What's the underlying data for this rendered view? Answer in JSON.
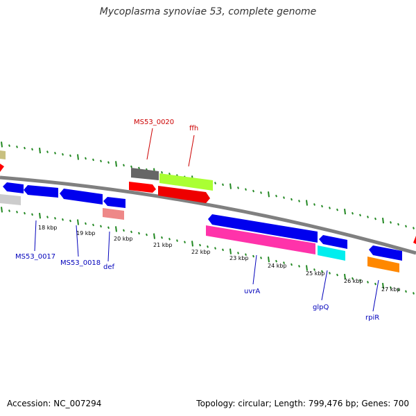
{
  "title": "Mycoplasma synoviae 53, complete genome",
  "footer": {
    "accession": "Accession: NC_007294",
    "summary": "Topology: circular; Length: 799,476 bp; Genes: 700"
  },
  "colors": {
    "backbone": "#888888",
    "tick": "#228822",
    "upper_label": "#cc0000",
    "lower_label": "#0000bb"
  },
  "kbp_labels": [
    "18 kbp",
    "19 kbp",
    "20 kbp",
    "21 kbp",
    "22 kbp",
    "23 kbp",
    "24 kbp",
    "25 kbp",
    "26 kbp",
    "27 kbp"
  ],
  "upper_labels": [
    "MS53_0020",
    "ffh"
  ],
  "lower_labels": [
    "MS53_0017",
    "MS53_0018",
    "def",
    "uvrA",
    "glpQ",
    "rpiR"
  ]
}
